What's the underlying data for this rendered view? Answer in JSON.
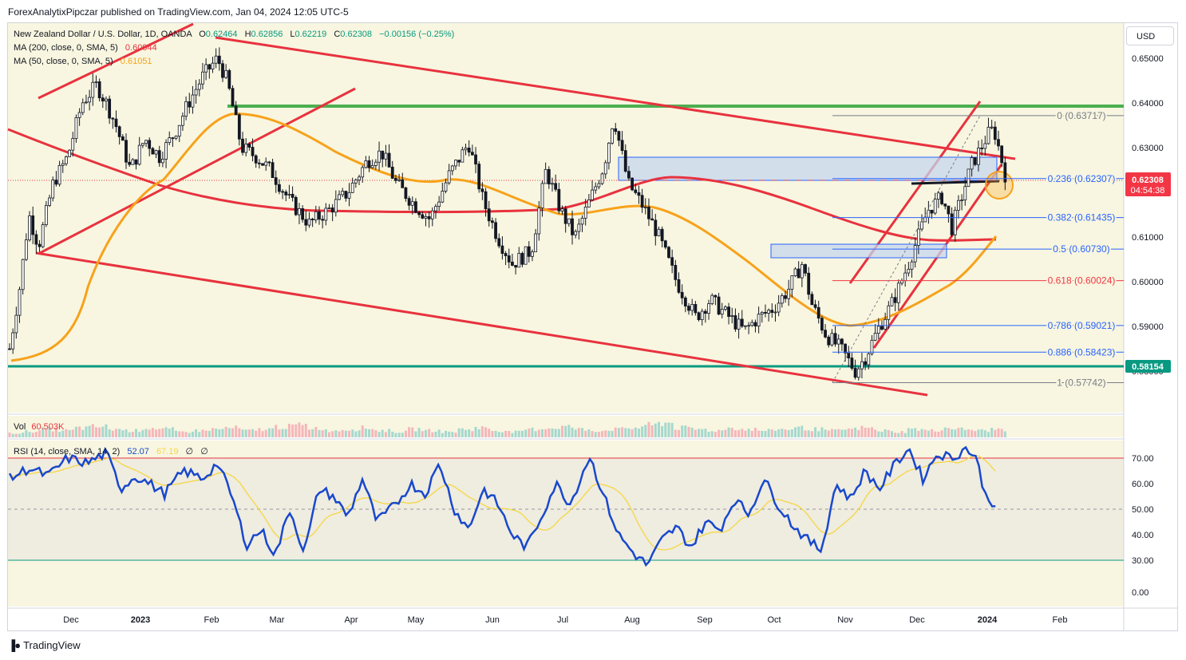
{
  "publisher": "ForexAnalytixPipczar published on TradingView.com, Jan 04, 2024 12:05 UTC-5",
  "brand": "TradingView",
  "currency_button": "USD",
  "legend": {
    "symbol": "New Zealand Dollar / U.S. Dollar, 1D, OANDA",
    "ohlc": [
      {
        "k": "O",
        "v": "0.62464"
      },
      {
        "k": "H",
        "v": "0.62856"
      },
      {
        "k": "L",
        "v": "0.62219"
      },
      {
        "k": "C",
        "v": "0.62308"
      }
    ],
    "change": "−0.00156 (−0.25%)",
    "ma200": {
      "label": "MA (200, close, 0, SMA, 5)",
      "value": "0.60944",
      "color": "#e8323e"
    },
    "ma50": {
      "label": "MA (50, close, 0, SMA, 5)",
      "value": "0.61051",
      "color": "#f7a21b"
    },
    "vol": {
      "label": "Vol",
      "value": "60.503K"
    },
    "rsi": {
      "label": "RSI (14, close, SMA, 14, 2)",
      "v1": "52.07",
      "v2": "67.19",
      "v3": "∅",
      "v4": "∅"
    }
  },
  "chart_data": {
    "type": "candlestick",
    "x_ticks": [
      "Dec",
      "2023",
      "Feb",
      "Mar",
      "Apr",
      "May",
      "Jun",
      "Jul",
      "Aug",
      "Sep",
      "Oct",
      "Nov",
      "Dec",
      "2024",
      "Feb"
    ],
    "price_axis": {
      "ticks": [
        "0.65000",
        "0.64000",
        "0.63000",
        "0.61000",
        "0.60000",
        "0.59000",
        "0.58000"
      ],
      "range": [
        0.5745,
        0.6575
      ]
    },
    "rsi_axis": {
      "ticks": [
        "70.00",
        "60.00",
        "50.00",
        "40.00",
        "30.00",
        "0.00"
      ],
      "range": [
        0,
        82
      ]
    },
    "last_price": {
      "value": "0.62308",
      "countdown": "04:54:38",
      "color": "#f23645"
    },
    "support_label": {
      "value": "0.58154",
      "color": "#089981"
    },
    "fib_levels": [
      {
        "ratio": "0",
        "price": "0.63717"
      },
      {
        "ratio": "0.236",
        "price": "0.62307"
      },
      {
        "ratio": "0.382",
        "price": "0.61435"
      },
      {
        "ratio": "0.5",
        "price": "0.60730"
      },
      {
        "ratio": "0.618",
        "price": "0.60024"
      },
      {
        "ratio": "0.786",
        "price": "0.59021"
      },
      {
        "ratio": "0.886",
        "price": "0.58423"
      },
      {
        "ratio": "1",
        "price": "0.57742"
      }
    ],
    "close_path": [
      [
        0.0,
        0.585
      ],
      [
        0.01,
        0.598
      ],
      [
        0.02,
        0.615
      ],
      [
        0.03,
        0.608
      ],
      [
        0.045,
        0.622
      ],
      [
        0.06,
        0.628
      ],
      [
        0.075,
        0.64
      ],
      [
        0.09,
        0.644
      ],
      [
        0.1,
        0.64
      ],
      [
        0.11,
        0.635
      ],
      [
        0.125,
        0.625
      ],
      [
        0.14,
        0.632
      ],
      [
        0.155,
        0.628
      ],
      [
        0.17,
        0.633
      ],
      [
        0.185,
        0.64
      ],
      [
        0.2,
        0.646
      ],
      [
        0.215,
        0.65
      ],
      [
        0.225,
        0.645
      ],
      [
        0.24,
        0.63
      ],
      [
        0.255,
        0.628
      ],
      [
        0.27,
        0.625
      ],
      [
        0.29,
        0.618
      ],
      [
        0.31,
        0.613
      ],
      [
        0.33,
        0.616
      ],
      [
        0.35,
        0.62
      ],
      [
        0.37,
        0.627
      ],
      [
        0.385,
        0.629
      ],
      [
        0.4,
        0.622
      ],
      [
        0.42,
        0.617
      ],
      [
        0.435,
        0.614
      ],
      [
        0.455,
        0.624
      ],
      [
        0.475,
        0.631
      ],
      [
        0.49,
        0.618
      ],
      [
        0.505,
        0.61
      ],
      [
        0.52,
        0.604
      ],
      [
        0.54,
        0.607
      ],
      [
        0.555,
        0.625
      ],
      [
        0.57,
        0.616
      ],
      [
        0.585,
        0.61
      ],
      [
        0.6,
        0.618
      ],
      [
        0.615,
        0.626
      ],
      [
        0.625,
        0.637
      ],
      [
        0.64,
        0.622
      ],
      [
        0.655,
        0.617
      ],
      [
        0.67,
        0.611
      ],
      [
        0.69,
        0.6
      ],
      [
        0.71,
        0.592
      ],
      [
        0.725,
        0.596
      ],
      [
        0.74,
        0.593
      ],
      [
        0.76,
        0.589
      ],
      [
        0.775,
        0.592
      ],
      [
        0.79,
        0.594
      ],
      [
        0.805,
        0.598
      ],
      [
        0.82,
        0.604
      ],
      [
        0.83,
        0.595
      ],
      [
        0.845,
        0.588
      ],
      [
        0.86,
        0.585
      ],
      [
        0.875,
        0.58
      ],
      [
        0.885,
        0.583
      ],
      [
        0.9,
        0.59
      ],
      [
        0.915,
        0.596
      ],
      [
        0.93,
        0.604
      ],
      [
        0.94,
        0.61
      ],
      [
        0.95,
        0.616
      ],
      [
        0.965,
        0.619
      ],
      [
        0.975,
        0.612
      ],
      [
        0.985,
        0.619
      ],
      [
        0.995,
        0.626
      ],
      [
        1.005,
        0.63
      ],
      [
        1.015,
        0.634
      ],
      [
        1.02,
        0.633
      ],
      [
        1.03,
        0.624
      ]
    ],
    "volume_profile": [
      0.2,
      0.35,
      0.5,
      0.4,
      0.6,
      0.7,
      0.5,
      0.4,
      0.6,
      0.5,
      0.3,
      0.4,
      0.5,
      0.6,
      0.4,
      0.5,
      0.7,
      0.8,
      0.6,
      0.4,
      0.5,
      0.6,
      0.4,
      0.3,
      0.5,
      0.4,
      0.3,
      0.5,
      0.6,
      0.4,
      0.3,
      0.5,
      0.6,
      0.7,
      0.5,
      0.4,
      0.5,
      0.6,
      0.8,
      1.0,
      0.6,
      0.5,
      0.4,
      0.6,
      0.5,
      0.4,
      0.5,
      0.6,
      0.5,
      0.4,
      0.5,
      0.6,
      0.4,
      0.3,
      0.5,
      0.4,
      0.6,
      0.5,
      0.4,
      0.5
    ],
    "rsi_path": [
      [
        0,
        62
      ],
      [
        0.02,
        66
      ],
      [
        0.04,
        63
      ],
      [
        0.06,
        70
      ],
      [
        0.08,
        68
      ],
      [
        0.1,
        72
      ],
      [
        0.115,
        58
      ],
      [
        0.13,
        63
      ],
      [
        0.145,
        60
      ],
      [
        0.16,
        56
      ],
      [
        0.18,
        65
      ],
      [
        0.2,
        62
      ],
      [
        0.215,
        68
      ],
      [
        0.23,
        55
      ],
      [
        0.245,
        36
      ],
      [
        0.26,
        42
      ],
      [
        0.275,
        32
      ],
      [
        0.29,
        50
      ],
      [
        0.305,
        33
      ],
      [
        0.32,
        58
      ],
      [
        0.335,
        55
      ],
      [
        0.35,
        47
      ],
      [
        0.365,
        62
      ],
      [
        0.38,
        45
      ],
      [
        0.4,
        52
      ],
      [
        0.415,
        60
      ],
      [
        0.43,
        56
      ],
      [
        0.445,
        68
      ],
      [
        0.46,
        50
      ],
      [
        0.475,
        42
      ],
      [
        0.49,
        58
      ],
      [
        0.505,
        52
      ],
      [
        0.52,
        40
      ],
      [
        0.535,
        35
      ],
      [
        0.55,
        47
      ],
      [
        0.565,
        60
      ],
      [
        0.58,
        52
      ],
      [
        0.6,
        71
      ],
      [
        0.615,
        55
      ],
      [
        0.63,
        40
      ],
      [
        0.645,
        33
      ],
      [
        0.66,
        28
      ],
      [
        0.675,
        38
      ],
      [
        0.69,
        43
      ],
      [
        0.705,
        35
      ],
      [
        0.72,
        45
      ],
      [
        0.735,
        42
      ],
      [
        0.75,
        54
      ],
      [
        0.765,
        48
      ],
      [
        0.78,
        62
      ],
      [
        0.795,
        52
      ],
      [
        0.81,
        44
      ],
      [
        0.825,
        38
      ],
      [
        0.84,
        34
      ],
      [
        0.855,
        60
      ],
      [
        0.87,
        54
      ],
      [
        0.885,
        65
      ],
      [
        0.9,
        58
      ],
      [
        0.915,
        67
      ],
      [
        0.93,
        74
      ],
      [
        0.945,
        62
      ],
      [
        0.96,
        72
      ],
      [
        0.975,
        70
      ],
      [
        0.99,
        74
      ],
      [
        1.0,
        70
      ],
      [
        1.01,
        55
      ],
      [
        1.02,
        52
      ]
    ]
  }
}
